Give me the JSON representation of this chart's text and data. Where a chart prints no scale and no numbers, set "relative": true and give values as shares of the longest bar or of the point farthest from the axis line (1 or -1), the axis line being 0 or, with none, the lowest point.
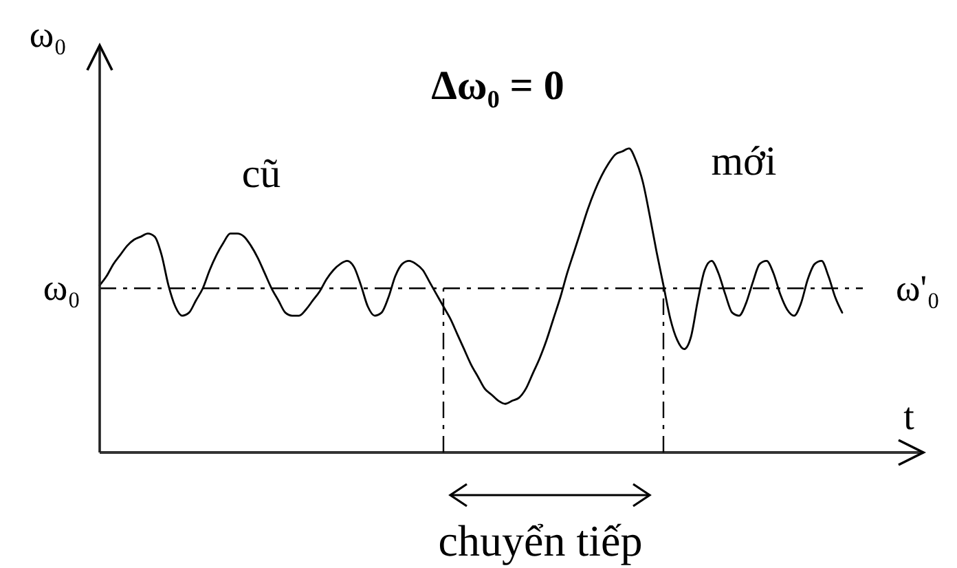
{
  "chart_data": {
    "type": "line",
    "title": "Δω₀ = 0",
    "xlabel": "t",
    "ylabel": "ω₀",
    "relative": true,
    "marker": "none",
    "line_style": "solid",
    "color": "#000000",
    "categories": [
      null,
      null,
      null,
      null,
      null,
      null,
      null,
      null,
      null,
      null,
      null,
      null,
      null,
      null,
      null,
      null,
      null,
      null,
      null,
      null,
      null,
      null,
      null,
      null,
      null,
      null,
      null,
      null,
      null,
      null,
      null,
      null,
      null,
      null,
      null,
      null,
      null,
      null,
      null,
      null,
      null,
      null,
      null,
      null,
      null,
      null,
      null,
      null,
      null,
      null,
      null,
      null,
      null,
      null,
      null,
      null,
      null,
      null,
      null,
      null,
      null,
      null,
      null,
      null,
      null,
      null,
      null,
      null,
      null,
      null,
      null,
      null,
      null,
      null,
      null,
      null,
      null,
      null,
      null,
      null,
      null,
      null,
      null,
      null,
      null,
      null,
      null,
      null,
      null,
      null,
      null,
      null,
      null,
      null,
      null,
      null,
      null,
      null,
      null,
      null,
      null,
      null,
      null,
      null,
      null,
      null,
      null,
      null,
      null,
      null,
      null,
      null,
      null,
      null,
      null,
      null,
      null,
      null,
      null,
      null
    ],
    "values": [
      0.55,
      0.58,
      0.62,
      0.65,
      0.68,
      0.7,
      0.71,
      0.72,
      0.71,
      0.65,
      0.55,
      0.48,
      0.45,
      0.46,
      0.5,
      0.54,
      0.6,
      0.65,
      0.69,
      0.72,
      0.72,
      0.71,
      0.68,
      0.64,
      0.59,
      0.54,
      0.5,
      0.46,
      0.45,
      0.45,
      0.47,
      0.5,
      0.53,
      0.57,
      0.6,
      0.62,
      0.63,
      0.61,
      0.55,
      0.48,
      0.45,
      0.46,
      0.51,
      0.58,
      0.62,
      0.63,
      0.62,
      0.6,
      0.56,
      0.52,
      0.48,
      0.44,
      0.39,
      0.34,
      0.29,
      0.25,
      0.21,
      0.19,
      0.17,
      0.16,
      0.17,
      0.18,
      0.21,
      0.26,
      0.31,
      0.37,
      0.44,
      0.51,
      0.59,
      0.66,
      0.73,
      0.8,
      0.86,
      0.91,
      0.95,
      0.98,
      0.99,
      1,
      0.96,
      0.89,
      0.78,
      0.66,
      0.55,
      0.44,
      0.37,
      0.34,
      0.38,
      0.5,
      0.6,
      0.63,
      0.59,
      0.52,
      0.46,
      0.45,
      0.49,
      0.56,
      0.62,
      0.63,
      0.59,
      0.52,
      0.47,
      0.45,
      0.49,
      0.57,
      0.62,
      0.63,
      0.58,
      0.51,
      0.46,
      null,
      null,
      null,
      null,
      null,
      null,
      null,
      null,
      null,
      null,
      null
    ],
    "ref_lines": [
      {
        "axis": "y",
        "value": 0.54,
        "label": "ω'₀",
        "line_style": "dashed",
        "color": "#000000"
      }
    ],
    "annotations": [
      "cũ",
      "mới",
      "chuyển tiếp",
      "ω₀"
    ]
  }
}
